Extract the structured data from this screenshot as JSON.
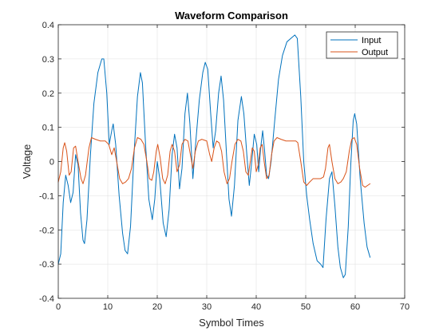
{
  "chart_data": {
    "type": "line",
    "title": "Waveform Comparison",
    "xlabel": "Symbol Times",
    "ylabel": "Voltage",
    "xlim": [
      0,
      70
    ],
    "ylim": [
      -0.4,
      0.4
    ],
    "xticks": [
      0,
      10,
      20,
      30,
      40,
      50,
      60,
      70
    ],
    "yticks": [
      -0.4,
      -0.3,
      -0.2,
      -0.1,
      0,
      0.1,
      0.2,
      0.3,
      0.4
    ],
    "xtick_labels": [
      "0",
      "10",
      "20",
      "30",
      "40",
      "50",
      "60",
      "70"
    ],
    "ytick_labels": [
      "-0.4",
      "-0.3",
      "-0.2",
      "-0.1",
      "0",
      "0.1",
      "0.2",
      "0.3",
      "0.4"
    ],
    "grid": true,
    "legend_position": "top-right",
    "series": [
      {
        "name": "Input",
        "color": "#0072BD",
        "points": [
          [
            0.0,
            -0.3
          ],
          [
            0.5,
            -0.27
          ],
          [
            1.0,
            -0.12
          ],
          [
            1.5,
            -0.04
          ],
          [
            2.0,
            -0.07
          ],
          [
            2.5,
            -0.12
          ],
          [
            3.0,
            -0.09
          ],
          [
            3.5,
            0.02
          ],
          [
            4.0,
            -0.01
          ],
          [
            4.5,
            -0.15
          ],
          [
            5.0,
            -0.23
          ],
          [
            5.3,
            -0.24
          ],
          [
            5.8,
            -0.17
          ],
          [
            6.5,
            0.02
          ],
          [
            7.2,
            0.17
          ],
          [
            8.0,
            0.26
          ],
          [
            8.8,
            0.3
          ],
          [
            9.2,
            0.3
          ],
          [
            9.8,
            0.2
          ],
          [
            10.3,
            0.05
          ],
          [
            10.8,
            0.09
          ],
          [
            11.1,
            0.11
          ],
          [
            11.6,
            0.05
          ],
          [
            12.3,
            -0.1
          ],
          [
            13.0,
            -0.21
          ],
          [
            13.5,
            -0.26
          ],
          [
            14.0,
            -0.27
          ],
          [
            14.6,
            -0.19
          ],
          [
            15.3,
            0.02
          ],
          [
            16.0,
            0.19
          ],
          [
            16.6,
            0.26
          ],
          [
            17.0,
            0.23
          ],
          [
            17.6,
            0.06
          ],
          [
            18.3,
            -0.11
          ],
          [
            19.0,
            -0.17
          ],
          [
            19.5,
            -0.11
          ],
          [
            20.0,
            0.0
          ],
          [
            20.5,
            -0.05
          ],
          [
            21.2,
            -0.18
          ],
          [
            21.8,
            -0.22
          ],
          [
            22.4,
            -0.14
          ],
          [
            23.0,
            0.02
          ],
          [
            23.5,
            0.08
          ],
          [
            24.0,
            0.04
          ],
          [
            24.5,
            -0.08
          ],
          [
            25.0,
            -0.02
          ],
          [
            25.6,
            0.14
          ],
          [
            26.1,
            0.2
          ],
          [
            26.6,
            0.11
          ],
          [
            27.2,
            -0.05
          ],
          [
            27.8,
            0.06
          ],
          [
            28.5,
            0.18
          ],
          [
            29.2,
            0.26
          ],
          [
            29.7,
            0.29
          ],
          [
            30.2,
            0.27
          ],
          [
            30.8,
            0.14
          ],
          [
            31.3,
            0.04
          ],
          [
            31.8,
            0.09
          ],
          [
            32.4,
            0.2
          ],
          [
            32.9,
            0.25
          ],
          [
            33.4,
            0.18
          ],
          [
            34.0,
            0.02
          ],
          [
            34.5,
            -0.11
          ],
          [
            35.0,
            -0.16
          ],
          [
            35.6,
            -0.07
          ],
          [
            36.3,
            0.12
          ],
          [
            37.0,
            0.19
          ],
          [
            37.5,
            0.14
          ],
          [
            38.1,
            0.02
          ],
          [
            38.6,
            -0.07
          ],
          [
            39.1,
            0.0
          ],
          [
            39.6,
            0.08
          ],
          [
            40.1,
            0.05
          ],
          [
            40.5,
            -0.03
          ],
          [
            40.9,
            0.04
          ],
          [
            41.3,
            0.09
          ],
          [
            41.7,
            0.03
          ],
          [
            42.1,
            -0.04
          ],
          [
            42.5,
            -0.05
          ],
          [
            43.0,
            0.0
          ],
          [
            43.8,
            0.13
          ],
          [
            44.5,
            0.24
          ],
          [
            45.3,
            0.31
          ],
          [
            46.2,
            0.35
          ],
          [
            47.0,
            0.36
          ],
          [
            47.8,
            0.37
          ],
          [
            48.3,
            0.36
          ],
          [
            49.0,
            0.19
          ],
          [
            49.6,
            0.0
          ],
          [
            50.2,
            -0.1
          ],
          [
            50.8,
            -0.17
          ],
          [
            51.5,
            -0.24
          ],
          [
            52.3,
            -0.29
          ],
          [
            53.0,
            -0.3
          ],
          [
            53.5,
            -0.31
          ],
          [
            54.1,
            -0.17
          ],
          [
            54.8,
            -0.05
          ],
          [
            55.3,
            -0.03
          ],
          [
            55.9,
            -0.13
          ],
          [
            56.5,
            -0.25
          ],
          [
            57.0,
            -0.31
          ],
          [
            57.6,
            -0.34
          ],
          [
            58.0,
            -0.33
          ],
          [
            58.6,
            -0.19
          ],
          [
            59.1,
            -0.01
          ],
          [
            59.6,
            0.12
          ],
          [
            59.9,
            0.14
          ],
          [
            60.3,
            0.11
          ],
          [
            61.0,
            -0.05
          ],
          [
            61.8,
            -0.18
          ],
          [
            62.4,
            -0.25
          ],
          [
            63.0,
            -0.28
          ]
        ]
      },
      {
        "name": "Output",
        "color": "#D95319",
        "points": [
          [
            0.0,
            -0.06
          ],
          [
            0.5,
            -0.03
          ],
          [
            1.0,
            0.04
          ],
          [
            1.3,
            0.055
          ],
          [
            1.7,
            0.03
          ],
          [
            2.2,
            -0.04
          ],
          [
            2.6,
            -0.03
          ],
          [
            3.1,
            0.04
          ],
          [
            3.5,
            0.045
          ],
          [
            4.0,
            0.0
          ],
          [
            4.6,
            -0.05
          ],
          [
            5.0,
            -0.065
          ],
          [
            5.5,
            -0.04
          ],
          [
            6.2,
            0.04
          ],
          [
            6.7,
            0.07
          ],
          [
            7.5,
            0.065
          ],
          [
            8.5,
            0.06
          ],
          [
            9.5,
            0.06
          ],
          [
            10.2,
            0.05
          ],
          [
            10.8,
            0.02
          ],
          [
            11.3,
            0.04
          ],
          [
            11.8,
            0.0
          ],
          [
            12.4,
            -0.05
          ],
          [
            13.0,
            -0.065
          ],
          [
            13.6,
            -0.06
          ],
          [
            14.2,
            -0.05
          ],
          [
            14.8,
            -0.02
          ],
          [
            15.4,
            0.04
          ],
          [
            16.0,
            0.07
          ],
          [
            16.7,
            0.065
          ],
          [
            17.3,
            0.05
          ],
          [
            17.9,
            0.0
          ],
          [
            18.4,
            -0.05
          ],
          [
            18.9,
            -0.055
          ],
          [
            19.3,
            -0.03
          ],
          [
            19.8,
            0.03
          ],
          [
            20.1,
            0.05
          ],
          [
            20.6,
            0.01
          ],
          [
            21.1,
            -0.05
          ],
          [
            21.6,
            -0.065
          ],
          [
            22.1,
            -0.04
          ],
          [
            22.6,
            0.03
          ],
          [
            23.0,
            0.05
          ],
          [
            23.5,
            0.03
          ],
          [
            24.0,
            -0.03
          ],
          [
            24.5,
            -0.01
          ],
          [
            25.0,
            0.05
          ],
          [
            25.6,
            0.065
          ],
          [
            26.2,
            0.06
          ],
          [
            26.7,
            0.02
          ],
          [
            27.2,
            -0.02
          ],
          [
            27.7,
            0.03
          ],
          [
            28.3,
            0.06
          ],
          [
            29.0,
            0.065
          ],
          [
            30.0,
            0.06
          ],
          [
            30.6,
            0.02
          ],
          [
            31.0,
            0.0
          ],
          [
            31.5,
            0.04
          ],
          [
            32.0,
            0.06
          ],
          [
            32.5,
            0.055
          ],
          [
            33.0,
            0.03
          ],
          [
            33.5,
            -0.03
          ],
          [
            34.1,
            -0.065
          ],
          [
            34.6,
            -0.05
          ],
          [
            35.1,
            0.0
          ],
          [
            35.7,
            0.05
          ],
          [
            36.3,
            0.065
          ],
          [
            36.9,
            0.06
          ],
          [
            37.4,
            0.03
          ],
          [
            37.9,
            -0.03
          ],
          [
            38.4,
            -0.04
          ],
          [
            38.8,
            0.0
          ],
          [
            39.2,
            0.04
          ],
          [
            39.6,
            0.03
          ],
          [
            40.0,
            -0.03
          ],
          [
            40.4,
            -0.01
          ],
          [
            40.8,
            0.04
          ],
          [
            41.2,
            0.05
          ],
          [
            41.6,
            0.0
          ],
          [
            42.1,
            -0.05
          ],
          [
            42.6,
            -0.04
          ],
          [
            43.1,
            0.02
          ],
          [
            43.6,
            0.06
          ],
          [
            44.2,
            0.07
          ],
          [
            45.0,
            0.065
          ],
          [
            46.0,
            0.06
          ],
          [
            47.0,
            0.06
          ],
          [
            48.0,
            0.06
          ],
          [
            48.4,
            0.055
          ],
          [
            49.0,
            0.0
          ],
          [
            49.6,
            -0.06
          ],
          [
            50.2,
            -0.07
          ],
          [
            50.8,
            -0.06
          ],
          [
            51.5,
            -0.05
          ],
          [
            52.3,
            -0.05
          ],
          [
            53.0,
            -0.05
          ],
          [
            53.6,
            -0.045
          ],
          [
            54.0,
            -0.02
          ],
          [
            54.5,
            0.04
          ],
          [
            54.8,
            0.05
          ],
          [
            55.3,
            0.0
          ],
          [
            55.9,
            -0.05
          ],
          [
            56.5,
            -0.065
          ],
          [
            57.1,
            -0.06
          ],
          [
            57.6,
            -0.05
          ],
          [
            58.2,
            -0.03
          ],
          [
            58.8,
            0.03
          ],
          [
            59.3,
            0.065
          ],
          [
            59.8,
            0.07
          ],
          [
            60.3,
            0.05
          ],
          [
            60.9,
            -0.02
          ],
          [
            61.5,
            -0.07
          ],
          [
            62.0,
            -0.075
          ],
          [
            62.5,
            -0.07
          ],
          [
            63.0,
            -0.065
          ]
        ]
      }
    ]
  }
}
